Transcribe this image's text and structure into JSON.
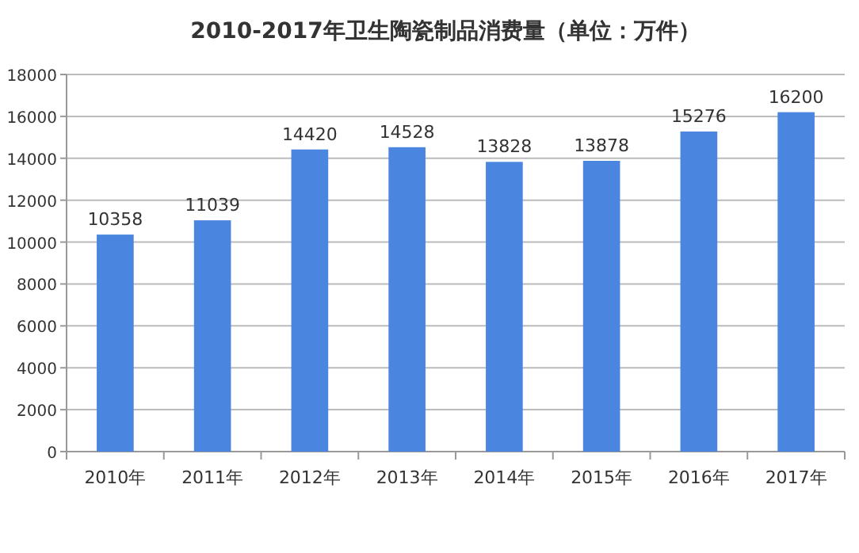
{
  "chart_data": {
    "type": "bar",
    "title": "2010-2017年卫生陶瓷制品消费量（单位：万件）",
    "categories": [
      "2010年",
      "2011年",
      "2012年",
      "2013年",
      "2014年",
      "2015年",
      "2016年",
      "2017年"
    ],
    "values": [
      10358,
      11039,
      14420,
      14528,
      13828,
      13878,
      15276,
      16200
    ],
    "color": "#4a86e0",
    "ylim": [
      0,
      18000
    ],
    "yticks": [
      0,
      2000,
      4000,
      6000,
      8000,
      10000,
      12000,
      14000,
      16000,
      18000
    ],
    "grid": "y",
    "data_labels": true
  }
}
